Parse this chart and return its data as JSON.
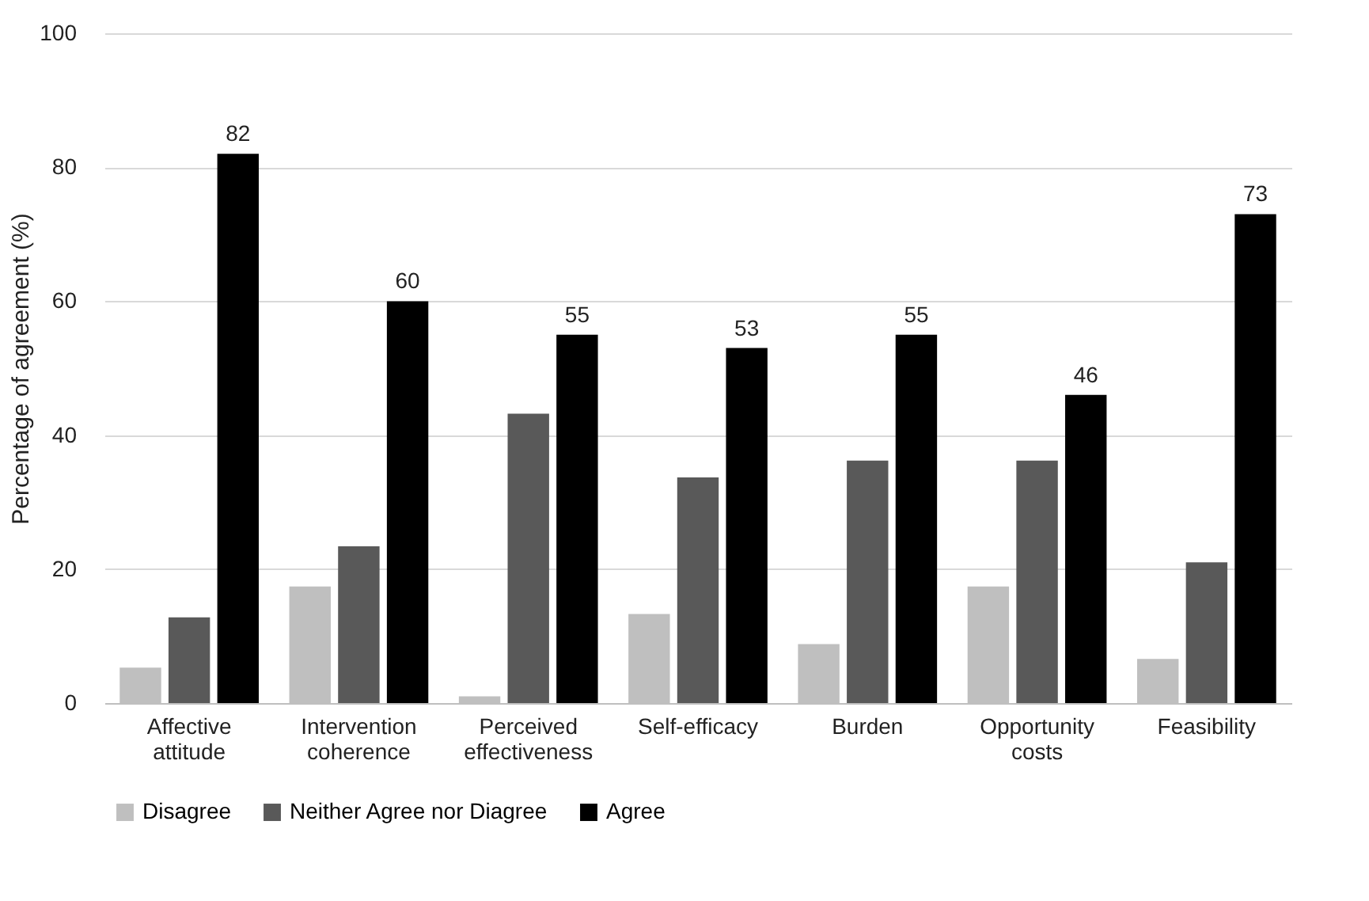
{
  "chart_data": {
    "type": "bar",
    "ylabel": "Percentage of agreement (%)",
    "categories": [
      "Affective attitude",
      "Intervention coherence",
      "Perceived effectiveness",
      "Self-efficacy",
      "Burden",
      "Opportunity costs",
      "Feasibility"
    ],
    "series": [
      {
        "name": "Disagree",
        "color": "#bfbfbf",
        "values": [
          5.3,
          17.4,
          1,
          13.3,
          8.8,
          17.4,
          6.6
        ]
      },
      {
        "name": "Neither Agree nor Diagree",
        "color": "#595959",
        "values": [
          12.8,
          23.4,
          43.2,
          33.7,
          36.2,
          36.2,
          21
        ]
      },
      {
        "name": "Agree",
        "color": "#000000",
        "values": [
          82,
          60,
          55,
          53,
          55,
          46,
          73
        ],
        "value_labels": [
          "82",
          "60",
          "55",
          "53",
          "55",
          "46",
          "73"
        ]
      }
    ],
    "ylim": [
      0,
      100
    ],
    "yticks": [
      0,
      20,
      40,
      60,
      80,
      100
    ],
    "grid": "y",
    "legend": "bottom"
  }
}
